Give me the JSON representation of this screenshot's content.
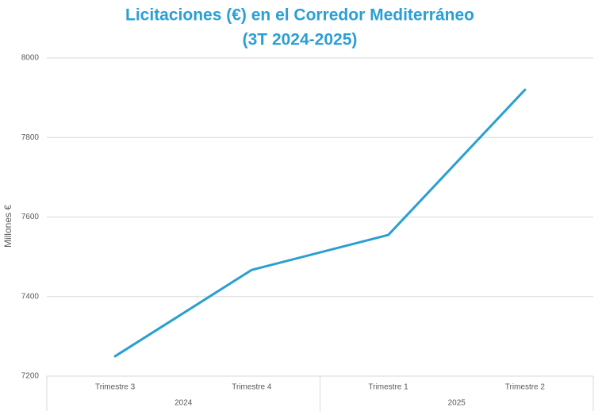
{
  "chart_data": {
    "type": "line",
    "title": [
      "Licitaciones (€) en el Corredor Mediterráneo",
      "(3T 2024-2025)"
    ],
    "y_label": "Millones €",
    "categories": [
      "Trimestre 3",
      "Trimestre 4",
      "Trimestre 1",
      "Trimestre 2"
    ],
    "group_labels": [
      "2024",
      "2025"
    ],
    "series": [
      {
        "color": "#2a9fd0",
        "values": [
          7250,
          7467,
          7555,
          7920
        ]
      }
    ],
    "ylim": [
      7200,
      8000
    ],
    "yticks": [
      7200,
      7400,
      7600,
      7800,
      8000
    ],
    "grid": true
  }
}
